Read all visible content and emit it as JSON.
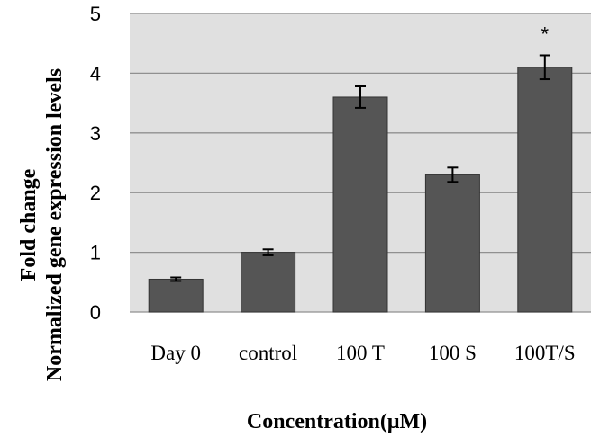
{
  "chart_data": {
    "type": "bar",
    "categories": [
      "Day 0",
      "control",
      "100 T",
      "100 S",
      "100T/S"
    ],
    "values": [
      0.55,
      1.0,
      3.6,
      2.3,
      4.1
    ],
    "errors": [
      0.03,
      0.05,
      0.18,
      0.12,
      0.2
    ],
    "annotations": [
      "",
      "",
      "",
      "",
      "*"
    ],
    "ylabel_lines": [
      "Fold change",
      "Normalized gene expression levels"
    ],
    "xlabel": "Concentration(μM)",
    "ylim": [
      0,
      5
    ],
    "yticks": [
      0,
      1,
      2,
      3,
      4,
      5
    ],
    "grid": true,
    "colors": {
      "bar": "#555555",
      "bar_edge": "#333333",
      "plot_bg": "#e0e0e0",
      "grid": "#909090"
    }
  }
}
